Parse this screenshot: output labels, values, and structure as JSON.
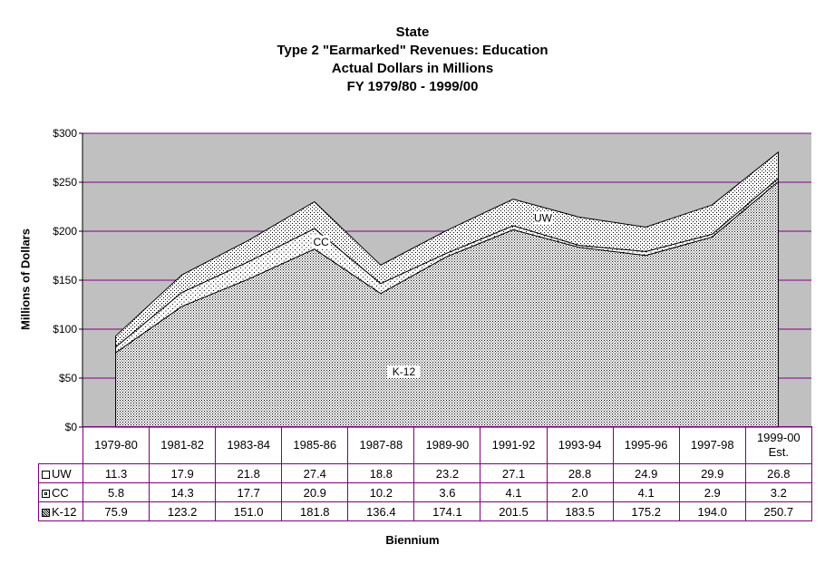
{
  "chart_data": {
    "type": "area",
    "stacked": true,
    "title_lines": [
      "State",
      "Type 2 \"Earmarked\" Revenues:  Education",
      "Actual Dollars in Millions",
      "FY 1979/80 - 1999/00"
    ],
    "xlabel": "Biennium",
    "ylabel": "Millions of Dollars",
    "ylim": [
      0,
      300
    ],
    "ytick_values": [
      0,
      50,
      100,
      150,
      200,
      250,
      300
    ],
    "ytick_labels": [
      "$0",
      "$50",
      "$100",
      "$150",
      "$200",
      "$250",
      "$300"
    ],
    "grid": true,
    "categories": [
      [
        "1979-80"
      ],
      [
        "1981-82"
      ],
      [
        "1983-84"
      ],
      [
        "1985-86"
      ],
      [
        "1987-88"
      ],
      [
        "1989-90"
      ],
      [
        "1991-92"
      ],
      [
        "1993-94"
      ],
      [
        "1995-96"
      ],
      [
        "1997-98"
      ],
      [
        "1999-00",
        "Est."
      ]
    ],
    "series": [
      {
        "name": "K-12",
        "pattern": "dense-dots",
        "values": [
          75.9,
          123.2,
          151.0,
          181.8,
          136.4,
          174.1,
          201.5,
          183.5,
          175.2,
          194.0,
          250.7
        ]
      },
      {
        "name": "CC",
        "pattern": "sparse-dots",
        "values": [
          5.8,
          14.3,
          17.7,
          20.9,
          10.2,
          3.6,
          4.1,
          2.0,
          4.1,
          2.9,
          3.2
        ]
      },
      {
        "name": "UW",
        "pattern": "dots",
        "values": [
          11.3,
          17.9,
          21.8,
          27.4,
          18.8,
          23.2,
          27.1,
          28.8,
          24.9,
          29.9,
          26.8
        ]
      }
    ],
    "area_labels": [
      {
        "series": "UW",
        "text": "UW"
      },
      {
        "series": "CC",
        "text": "CC"
      },
      {
        "series": "K-12",
        "text": "K-12"
      }
    ],
    "table_row_order": [
      "UW",
      "CC",
      "K-12"
    ],
    "colors": {
      "plot_bg": "#c0c0c0",
      "grid": "#800080",
      "line": "#000000"
    }
  }
}
